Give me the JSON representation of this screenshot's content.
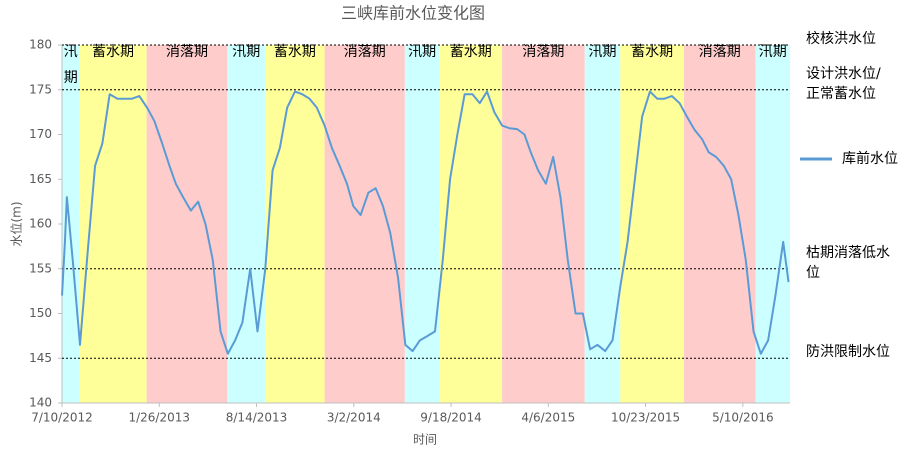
{
  "chart_data": {
    "type": "line",
    "title": "三峡库前水位变化图",
    "x_label": "时间",
    "y_label": "水位(m)",
    "xlim": [
      "2012-07-10",
      "2016-08-15"
    ],
    "xticks": [
      {
        "value": "2012-07-10",
        "label": "7/10/2012"
      },
      {
        "value": "2013-01-26",
        "label": "1/26/2013"
      },
      {
        "value": "2013-08-14",
        "label": "8/14/2013"
      },
      {
        "value": "2014-03-02",
        "label": "3/2/2014"
      },
      {
        "value": "2014-09-18",
        "label": "9/18/2014"
      },
      {
        "value": "2015-04-06",
        "label": "4/6/2015"
      },
      {
        "value": "2015-10-23",
        "label": "10/23/2015"
      },
      {
        "value": "2016-05-10",
        "label": "5/10/2016"
      }
    ],
    "ylim": [
      140,
      180
    ],
    "yticks": [
      140,
      145,
      150,
      155,
      160,
      165,
      170,
      175,
      180
    ],
    "grid": false,
    "legend": "right",
    "x": [
      "2012-07-10",
      "2012-07-16",
      "2012-07-20",
      "2012-08-01",
      "2012-08-16",
      "2012-09-01",
      "2012-09-16",
      "2012-10-01",
      "2012-10-16",
      "2012-11-01",
      "2012-11-16",
      "2012-12-01",
      "2012-12-16",
      "2013-01-01",
      "2013-01-16",
      "2013-02-01",
      "2013-02-16",
      "2013-03-01",
      "2013-03-16",
      "2013-04-01",
      "2013-04-16",
      "2013-05-01",
      "2013-05-16",
      "2013-06-01",
      "2013-06-16",
      "2013-07-01",
      "2013-07-16",
      "2013-08-01",
      "2013-08-16",
      "2013-09-01",
      "2013-09-16",
      "2013-10-01",
      "2013-10-16",
      "2013-11-01",
      "2013-11-16",
      "2013-12-01",
      "2013-12-16",
      "2014-01-01",
      "2014-01-16",
      "2014-02-01",
      "2014-02-16",
      "2014-03-01",
      "2014-03-16",
      "2014-04-01",
      "2014-04-16",
      "2014-05-01",
      "2014-05-16",
      "2014-06-01",
      "2014-06-16",
      "2014-07-01",
      "2014-07-16",
      "2014-08-01",
      "2014-08-16",
      "2014-09-01",
      "2014-09-16",
      "2014-10-01",
      "2014-10-16",
      "2014-11-01",
      "2014-11-16",
      "2014-12-01",
      "2014-12-16",
      "2015-01-01",
      "2015-01-16",
      "2015-02-01",
      "2015-02-16",
      "2015-03-01",
      "2015-03-16",
      "2015-04-01",
      "2015-04-16",
      "2015-05-01",
      "2015-05-16",
      "2015-06-01",
      "2015-06-16",
      "2015-07-01",
      "2015-07-16",
      "2015-08-01",
      "2015-08-16",
      "2015-09-01",
      "2015-09-16",
      "2015-10-01",
      "2015-10-16",
      "2015-11-01",
      "2015-11-16",
      "2015-12-01",
      "2015-12-16",
      "2016-01-01",
      "2016-01-16",
      "2016-02-01",
      "2016-02-16",
      "2016-03-01",
      "2016-03-16",
      "2016-04-01",
      "2016-04-16",
      "2016-05-01",
      "2016-05-16",
      "2016-06-01",
      "2016-06-16",
      "2016-07-01",
      "2016-07-16",
      "2016-08-01",
      "2016-08-12"
    ],
    "series": [
      {
        "name": "库前水位",
        "color": "#5b9bd5",
        "values": [
          152,
          158,
          163,
          156,
          146.5,
          157,
          166.5,
          169,
          174.5,
          174,
          174,
          174,
          174.3,
          173,
          171.5,
          169,
          166.5,
          164.5,
          163,
          161.5,
          162.5,
          160,
          156,
          148,
          145.5,
          147,
          149,
          155,
          148,
          155,
          166,
          168.5,
          173,
          174.8,
          174.5,
          174,
          173,
          171,
          168.5,
          166.5,
          164.5,
          162,
          161,
          163.5,
          164,
          162,
          159,
          154,
          146.5,
          145.8,
          147,
          147.5,
          148,
          156,
          165,
          170,
          174.5,
          174.5,
          173.5,
          174.8,
          172.5,
          171,
          170.7,
          170.6,
          170,
          168,
          166,
          164.5,
          167.5,
          163,
          156,
          150,
          150,
          146,
          146.5,
          145.8,
          147,
          153,
          158,
          165,
          172,
          174.8,
          174,
          174,
          174.3,
          173.5,
          172,
          170.5,
          169.5,
          168,
          167.5,
          166.5,
          165,
          161,
          156,
          148,
          145.5,
          147,
          152,
          158,
          153.5
        ]
      }
    ],
    "bands": [
      {
        "label": "汛期",
        "start": "2012-07-10",
        "end": "2012-08-15",
        "color": "#ccffff"
      },
      {
        "label": "蓄水期",
        "start": "2012-08-15",
        "end": "2012-12-31",
        "color": "#ffff99"
      },
      {
        "label": "消落期",
        "start": "2012-12-31",
        "end": "2013-06-15",
        "color": "#ffcccc"
      },
      {
        "label": "汛期",
        "start": "2013-06-15",
        "end": "2013-09-01",
        "color": "#ccffff"
      },
      {
        "label": "蓄水期",
        "start": "2013-09-01",
        "end": "2014-01-01",
        "color": "#ffff99"
      },
      {
        "label": "消落期",
        "start": "2014-01-01",
        "end": "2014-06-15",
        "color": "#ffcccc"
      },
      {
        "label": "汛期",
        "start": "2014-06-15",
        "end": "2014-08-25",
        "color": "#ccffff"
      },
      {
        "label": "蓄水期",
        "start": "2014-08-25",
        "end": "2015-01-01",
        "color": "#ffff99"
      },
      {
        "label": "消落期",
        "start": "2015-01-01",
        "end": "2015-06-20",
        "color": "#ffcccc"
      },
      {
        "label": "汛期",
        "start": "2015-06-20",
        "end": "2015-09-01",
        "color": "#ccffff"
      },
      {
        "label": "蓄水期",
        "start": "2015-09-01",
        "end": "2016-01-10",
        "color": "#ffff99"
      },
      {
        "label": "消落期",
        "start": "2016-01-10",
        "end": "2016-06-05",
        "color": "#ffcccc"
      },
      {
        "label": "汛期",
        "start": "2016-06-05",
        "end": "2016-08-15",
        "color": "#ccffff"
      }
    ],
    "reference_lines": [
      {
        "value": 180,
        "label": "校核洪水位"
      },
      {
        "value": 175,
        "label": "设计洪水位/正常蓄水位"
      },
      {
        "value": 155,
        "label": "枯期消落低水位"
      },
      {
        "value": 145,
        "label": "防洪限制水位"
      }
    ]
  }
}
